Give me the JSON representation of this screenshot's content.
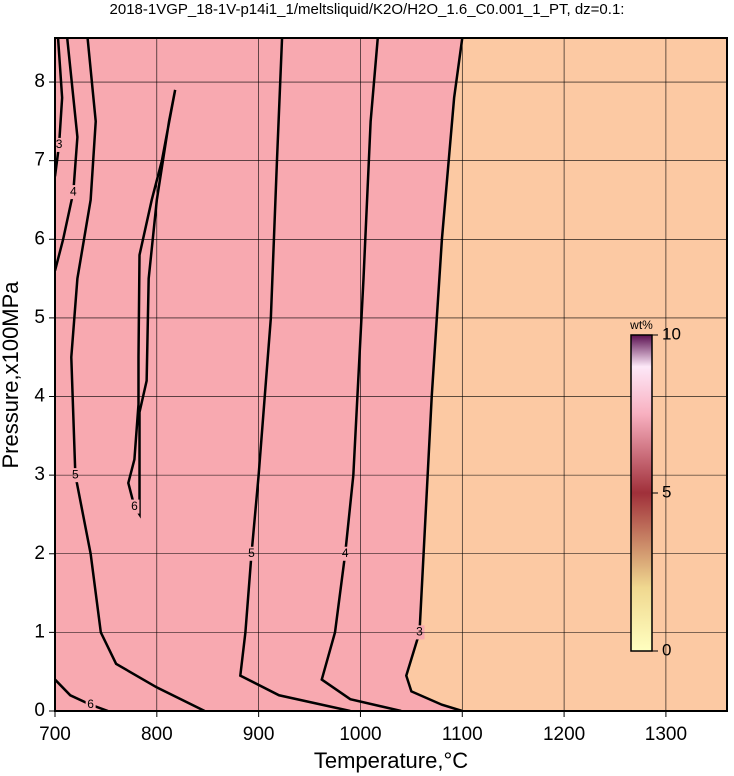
{
  "chart_data": {
    "type": "contour",
    "title": "2018-1VGP_18-1V-p14i1_1/meltsliquid/K2O/H2O_1.6_C0.001_1_PT, dz=0.1:",
    "x_label": "Temperature,°C",
    "y_label": "Pressure,x100MPa",
    "xlim": [
      700,
      1360
    ],
    "ylim": [
      0,
      8.56
    ],
    "xticks": [
      700,
      800,
      900,
      1000,
      1100,
      1200,
      1300
    ],
    "yticks": [
      0,
      1,
      2,
      3,
      4,
      5,
      6,
      7,
      8
    ],
    "grid": true,
    "background_color": "#fcc9a3",
    "fill_color": "#f8a9b0",
    "contours": [
      {
        "level": 3,
        "x": [
          1100,
          1092,
          1080,
          1070,
          1062,
          1058,
          1045,
          1050,
          1080,
          1100
        ],
        "y": [
          8.56,
          7.8,
          6,
          4,
          2,
          1,
          0.45,
          0.25,
          0.08,
          0
        ]
      },
      {
        "level": 4,
        "x": [
          1017,
          1010,
          1003,
          993,
          985,
          975,
          962,
          990,
          1040
        ],
        "y": [
          8.56,
          7.5,
          5.5,
          3,
          2,
          1,
          0.4,
          0.15,
          0
        ]
      },
      {
        "level": 5,
        "x": [
          923,
          918,
          912,
          900,
          893,
          887,
          882,
          920,
          990
        ],
        "y": [
          8.56,
          7,
          5,
          3,
          2,
          1,
          0.45,
          0.2,
          0
        ]
      },
      {
        "level": 6,
        "x": [
          818,
          805,
          795,
          783,
          782,
          782,
          778,
          772,
          778,
          783,
          783,
          790,
          792,
          800,
          812,
          818
        ],
        "y": [
          7.9,
          7.0,
          6.5,
          5.8,
          4.5,
          3.9,
          3.2,
          2.9,
          2.6,
          2.5,
          3.8,
          4.2,
          5.5,
          6.5,
          7.5,
          7.9
        ]
      },
      {
        "level": 5,
        "x": [
          732,
          740,
          735,
          722,
          716,
          720,
          735,
          745,
          760,
          800,
          847
        ],
        "y": [
          8.56,
          7.5,
          6.5,
          5.5,
          4.5,
          3,
          2,
          1,
          0.6,
          0.3,
          0
        ]
      },
      {
        "level": 4,
        "x": [
          712,
          722,
          718,
          708,
          700
        ],
        "y": [
          8.56,
          7.3,
          6.6,
          6.0,
          5.6
        ]
      },
      {
        "level": 3,
        "x": [
          703,
          707,
          704,
          700
        ],
        "y": [
          8.56,
          7.8,
          7.2,
          6.8
        ]
      },
      {
        "level": 6,
        "x": [
          700,
          715,
          735,
          752
        ],
        "y": [
          0.4,
          0.2,
          0.08,
          0
        ]
      }
    ],
    "colorbar": {
      "label": "wt%",
      "lim": [
        0,
        10
      ],
      "ticks": [
        0,
        5,
        10
      ]
    }
  }
}
